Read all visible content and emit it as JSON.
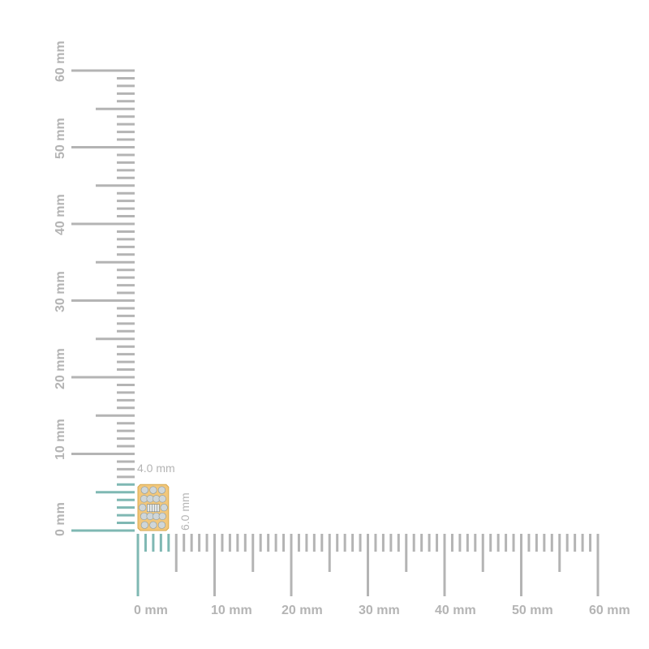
{
  "ruler": {
    "unit": "mm",
    "x_labels": [
      "0 mm",
      "10 mm",
      "20 mm",
      "30 mm",
      "40 mm",
      "50 mm",
      "60 mm"
    ],
    "y_labels": [
      "0 mm",
      "10 mm",
      "20 mm",
      "30 mm",
      "40 mm",
      "50 mm",
      "60 mm"
    ],
    "range_mm": [
      0,
      60
    ],
    "tick_color": "#b4b4b4",
    "highlight_color": "#7fb8b3"
  },
  "item": {
    "width_label": "4.0 mm",
    "height_label": "6.0 mm",
    "width_mm": 4,
    "height_mm": 6,
    "metal_color": "#f2c77a",
    "stone_color": "#cfd6d8"
  }
}
